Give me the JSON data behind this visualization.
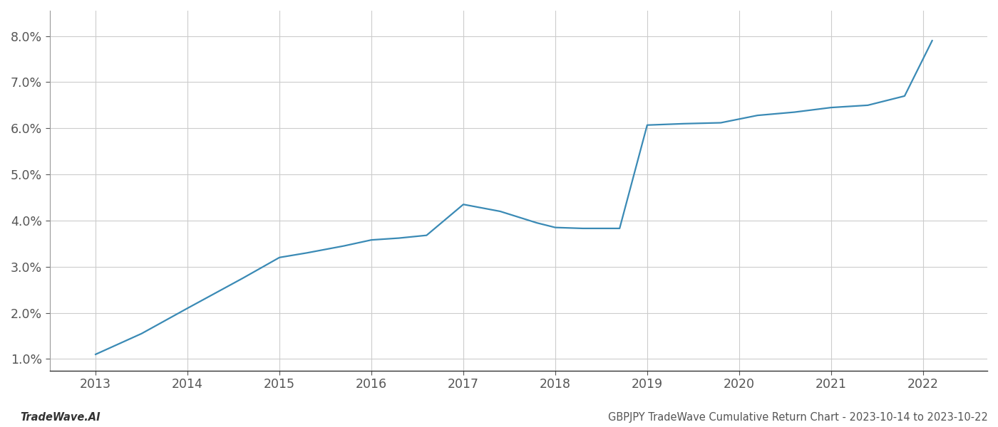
{
  "x_values": [
    2013.0,
    2013.5,
    2014.0,
    2014.6,
    2015.0,
    2015.3,
    2015.7,
    2016.0,
    2016.3,
    2016.6,
    2017.0,
    2017.4,
    2017.8,
    2018.0,
    2018.3,
    2018.7,
    2019.0,
    2019.4,
    2019.8,
    2020.2,
    2020.6,
    2021.0,
    2021.4,
    2021.8,
    2022.1
  ],
  "y_values": [
    1.1,
    1.55,
    2.1,
    2.75,
    3.2,
    3.3,
    3.45,
    3.58,
    3.62,
    3.68,
    4.35,
    4.2,
    3.95,
    3.85,
    3.83,
    3.83,
    6.07,
    6.1,
    6.12,
    6.28,
    6.35,
    6.45,
    6.5,
    6.7,
    7.9
  ],
  "line_color": "#3a8ab5",
  "background_color": "#ffffff",
  "grid_color": "#cccccc",
  "left_spine_color": "#999999",
  "bottom_spine_color": "#333333",
  "tick_label_color": "#555555",
  "footer_left": "TradeWave.AI",
  "footer_right": "GBPJPY TradeWave Cumulative Return Chart - 2023-10-14 to 2023-10-22",
  "xlim": [
    2012.5,
    2022.7
  ],
  "ylim": [
    0.75,
    8.55
  ],
  "yticks": [
    1.0,
    2.0,
    3.0,
    4.0,
    5.0,
    6.0,
    7.0,
    8.0
  ],
  "xticks": [
    2013,
    2014,
    2015,
    2016,
    2017,
    2018,
    2019,
    2020,
    2021,
    2022
  ],
  "line_width": 1.6,
  "footer_fontsize": 10.5,
  "tick_fontsize": 12.5
}
